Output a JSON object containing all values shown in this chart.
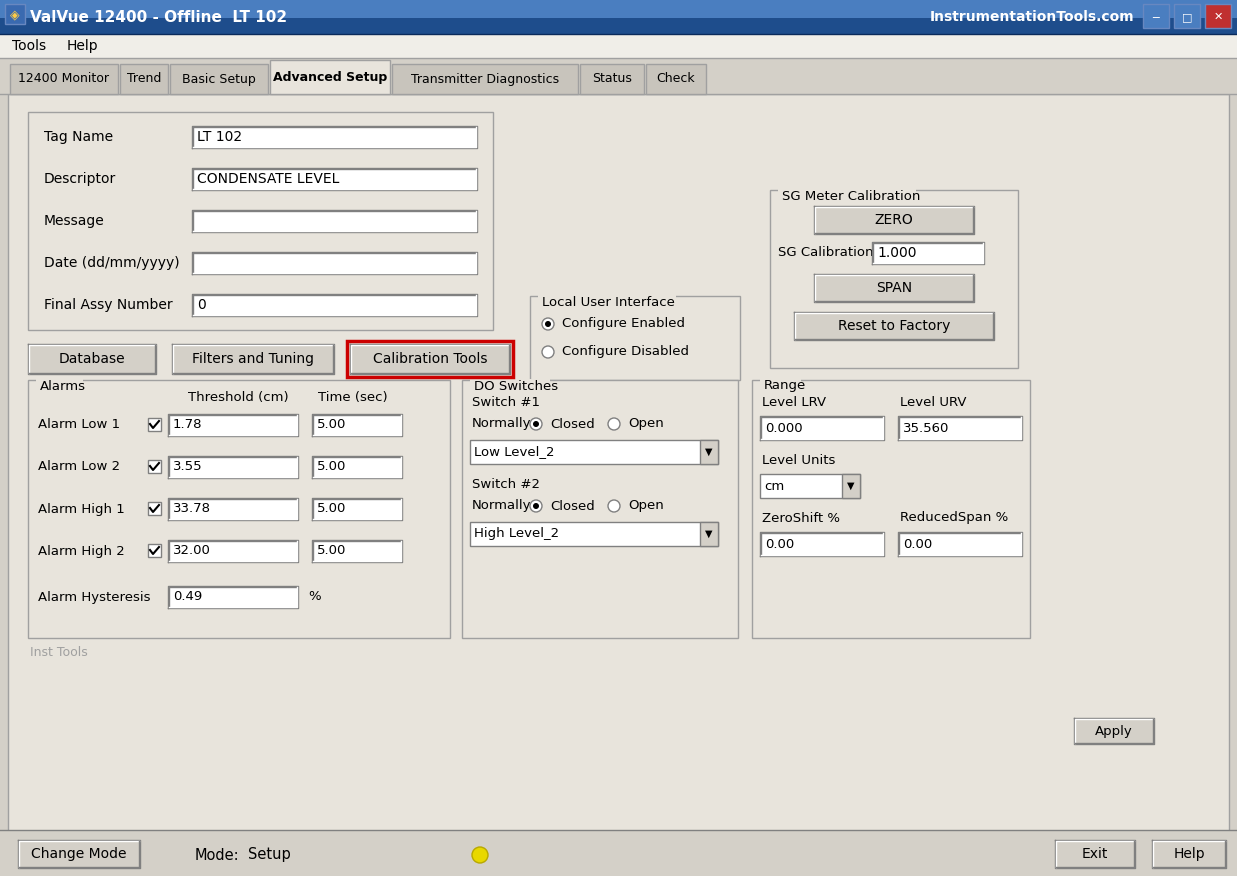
{
  "title_bar_text": "ValVue 12400 - Offline  LT 102",
  "title_bar_right": "InstrumentationTools.com",
  "menu_items": [
    "Tools",
    "Help"
  ],
  "tabs": [
    "12400 Monitor",
    "Trend",
    "Basic Setup",
    "Advanced Setup",
    "Transmitter Diagnostics",
    "Status",
    "Check"
  ],
  "active_tab": "Advanced Setup",
  "fields": [
    {
      "label": "Tag Name",
      "value": "LT 102"
    },
    {
      "label": "Descriptor",
      "value": "CONDENSATE LEVEL"
    },
    {
      "label": "Message",
      "value": ""
    },
    {
      "label": "Date (dd/mm/yyyy)",
      "value": ""
    },
    {
      "label": "Final Assy Number",
      "value": "0"
    }
  ],
  "buttons_row": [
    "Database",
    "Filters and Tuning",
    "Calibration Tools"
  ],
  "highlighted_button": "Calibration Tools",
  "local_user_interface": {
    "label": "Local User Interface",
    "options": [
      "Configure Enabled",
      "Configure Disabled"
    ],
    "selected": "Configure Enabled"
  },
  "sg_meter_calibration": {
    "label": "SG Meter Calibration",
    "buttons": [
      "ZERO",
      "SPAN",
      "Reset to Factory"
    ],
    "sg_calibration_label": "SG Calibration",
    "sg_calibration_value": "1.000"
  },
  "alarms": {
    "label": "Alarms",
    "rows": [
      {
        "name": "Alarm Low 1",
        "checked": true,
        "threshold": "1.78",
        "time": "5.00"
      },
      {
        "name": "Alarm Low 2",
        "checked": true,
        "threshold": "3.55",
        "time": "5.00"
      },
      {
        "name": "Alarm High 1",
        "checked": true,
        "threshold": "33.78",
        "time": "5.00"
      },
      {
        "name": "Alarm High 2",
        "checked": true,
        "threshold": "32.00",
        "time": "5.00"
      }
    ],
    "hysteresis_label": "Alarm Hysteresis",
    "hysteresis_value": "0.49",
    "hysteresis_unit": "%"
  },
  "do_switches": {
    "label": "DO Switches",
    "switch1_label": "Switch #1",
    "switch1_normally": "Normally",
    "switch1_selected": "Closed",
    "switch1_dropdown": "Low Level_2",
    "switch2_label": "Switch #2",
    "switch2_normally": "Normally",
    "switch2_selected": "Closed",
    "switch2_dropdown": "High Level_2"
  },
  "range": {
    "label": "Range",
    "level_lrv_label": "Level LRV",
    "level_urv_label": "Level URV",
    "level_lrv_value": "0.000",
    "level_urv_value": "35.560",
    "level_units_label": "Level Units",
    "level_units_value": "cm",
    "zero_shift_label": "ZeroShift %",
    "reduced_span_label": "ReducedSpan %",
    "zero_shift_value": "0.00",
    "reduced_span_value": "0.00"
  },
  "bottom_bar": {
    "change_mode_btn": "Change Mode",
    "mode_label": "Mode:",
    "mode_value": "Setup",
    "exit_btn": "Exit",
    "help_btn": "Help"
  },
  "inst_tools_label": "Inst Tools",
  "apply_btn": "Apply",
  "titlebar_bg1": "#3a6ea5",
  "titlebar_bg2": "#1e4d82",
  "bg_color": "#d4d0c8",
  "panel_bg": "#e8e4dc",
  "groupbox_bg": "#e0dcd4",
  "input_bg": "#ffffff",
  "button_face": "#d4d0c8",
  "highlight_red": "#cc0000",
  "tab_active_bg": "#e8e4dc",
  "tab_inactive_bg": "#c8c4bc"
}
